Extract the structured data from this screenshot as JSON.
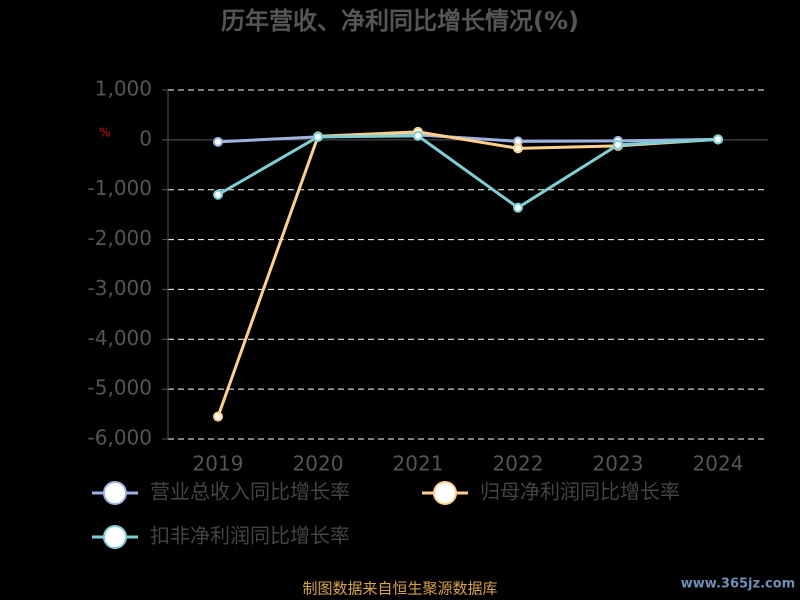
{
  "chart_data": {
    "type": "line",
    "title": "历年营收、净利同比增长情况(%)",
    "ylabel": "%",
    "categories": [
      "2019",
      "2020",
      "2021",
      "2022",
      "2023",
      "2024"
    ],
    "series": [
      {
        "name": "营业总收入同比增长率",
        "color": "#9db4e0",
        "values": [
          -40,
          60,
          100,
          -30,
          -20,
          10
        ]
      },
      {
        "name": "归母净利润同比增长率",
        "color": "#ffd08a",
        "values": [
          -5550,
          70,
          160,
          -170,
          -120,
          10
        ]
      },
      {
        "name": "扣非净利润同比增长率",
        "color": "#7ecfd4",
        "values": [
          -1100,
          60,
          80,
          -1360,
          -100,
          10
        ]
      }
    ],
    "ylim": [
      -6000,
      1000
    ],
    "yticks": [
      {
        "value": -6000,
        "label": "-6,000"
      },
      {
        "value": -5000,
        "label": "-5,000"
      },
      {
        "value": -4000,
        "label": "-4,000"
      },
      {
        "value": -3000,
        "label": "-3,000"
      },
      {
        "value": -2000,
        "label": "-2,000"
      },
      {
        "value": -1000,
        "label": "-1,000"
      },
      0,
      {
        "value": 1000,
        "label": "1,000"
      }
    ],
    "grid": true,
    "source": "制图数据来自恒生聚源数据库",
    "watermark": "www.365jz.com"
  }
}
